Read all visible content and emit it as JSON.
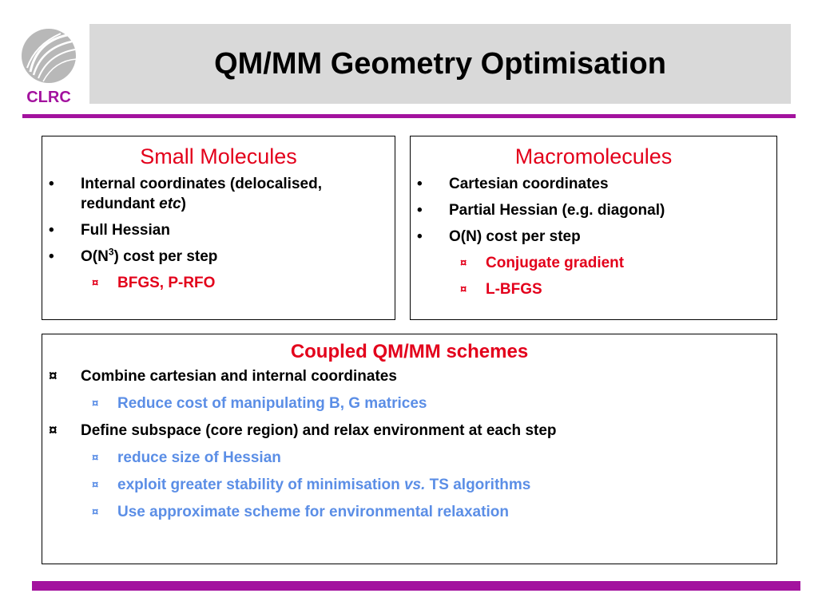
{
  "header": {
    "title": "QM/MM Geometry Optimisation",
    "logo_text": "CLRC"
  },
  "colors": {
    "accent_rule": "#a3129e",
    "heading_red": "#e3001b",
    "sub_blue": "#5b8ee6",
    "title_bar_bg": "#d9d9d9"
  },
  "small": {
    "heading": "Small Molecules",
    "bullet": "•",
    "sub_bullet": "¤",
    "item1_a": "Internal coordinates (delocalised, redundant ",
    "item1_em": "etc",
    "item1_b": ")",
    "item2": "Full Hessian",
    "item3_a": "O(N",
    "item3_sup": "3",
    "item3_b": ") cost per step",
    "sub1": "BFGS, P-RFO"
  },
  "macro": {
    "heading": "Macromolecules",
    "bullet": "•",
    "sub_bullet": "¤",
    "item1": "Cartesian coordinates",
    "item2": "Partial Hessian (e.g. diagonal)",
    "item3": "O(N) cost per step",
    "sub1": "Conjugate gradient",
    "sub2": "L-BFGS"
  },
  "coupled": {
    "heading": "Coupled QM/MM schemes",
    "sub_bullet": "¤",
    "item1": "Combine cartesian and internal coordinates",
    "item1_sub1": "Reduce cost of manipulating B, G matrices",
    "item2": "Define subspace (core region) and relax environment at each step",
    "item2_sub1": "reduce size of Hessian",
    "item2_sub2_a": "exploit greater stability of minimisation ",
    "item2_sub2_em": "vs.",
    "item2_sub2_b": " TS algorithms",
    "item2_sub3": "Use approximate scheme for environmental relaxation"
  }
}
